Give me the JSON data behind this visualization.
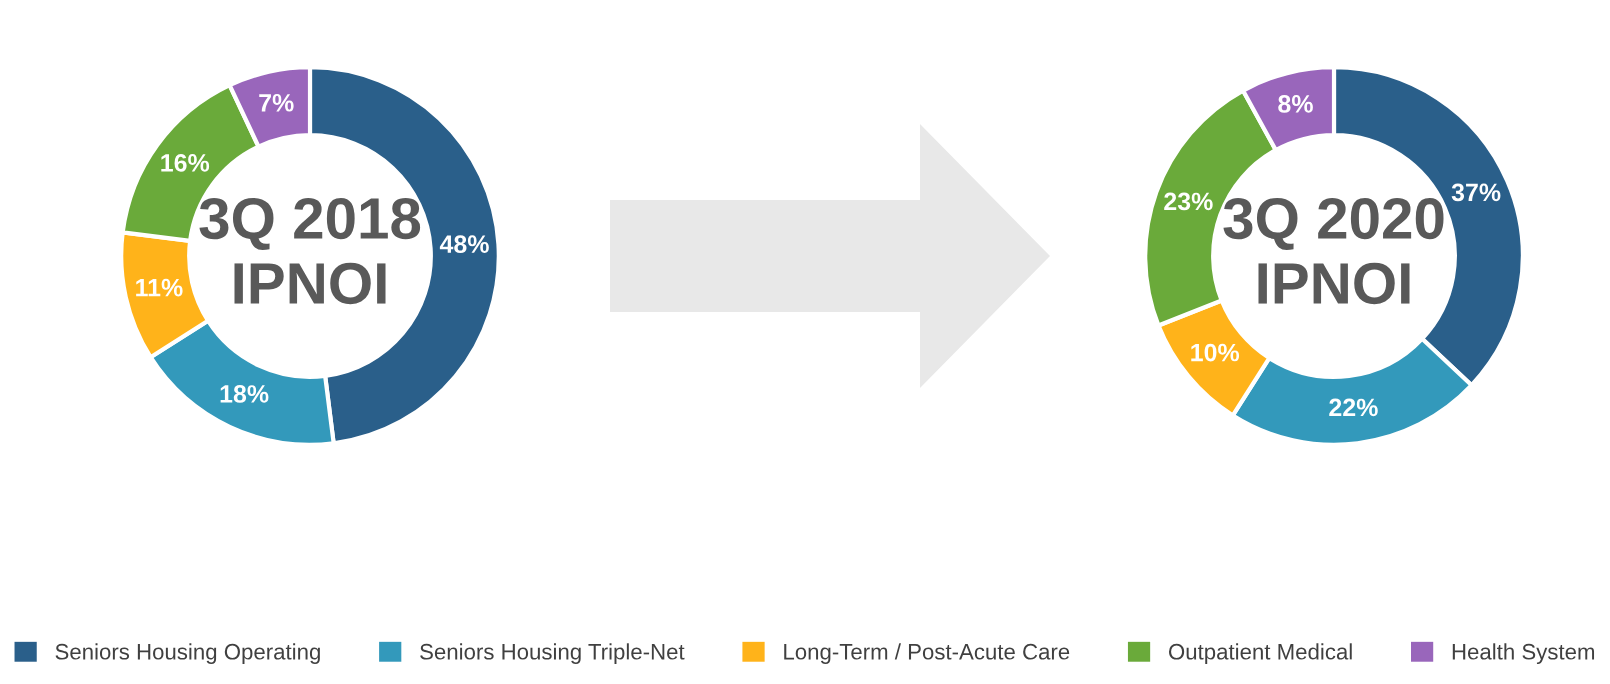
{
  "chart_data": [
    {
      "type": "donut",
      "title": "3Q 2018\nIPNOI",
      "categories": [
        "Seniors Housing Operating",
        "Seniors Housing Triple-Net",
        "Long-Term / Post-Acute Care",
        "Outpatient Medical",
        "Health System"
      ],
      "values": [
        48,
        18,
        11,
        16,
        7
      ],
      "value_labels": [
        "48%",
        "18%",
        "11%",
        "16%",
        "7%"
      ],
      "colors": [
        "#2a5f8a",
        "#3399bb",
        "#ffb31a",
        "#6aaa3a",
        "#9966bb"
      ],
      "legend": "bottom"
    },
    {
      "type": "donut",
      "title": "3Q 2020\nIPNOI",
      "categories": [
        null,
        null,
        null,
        null,
        null
      ],
      "values": [
        37,
        22,
        10,
        23,
        8
      ],
      "value_labels": [
        "37%",
        "22%",
        "10%",
        "23%",
        "8%"
      ],
      "colors": [
        "#2a5f8a",
        "#3399bb",
        "#ffb31a",
        "#6aaa3a",
        "#9966bb"
      ]
    }
  ]
}
